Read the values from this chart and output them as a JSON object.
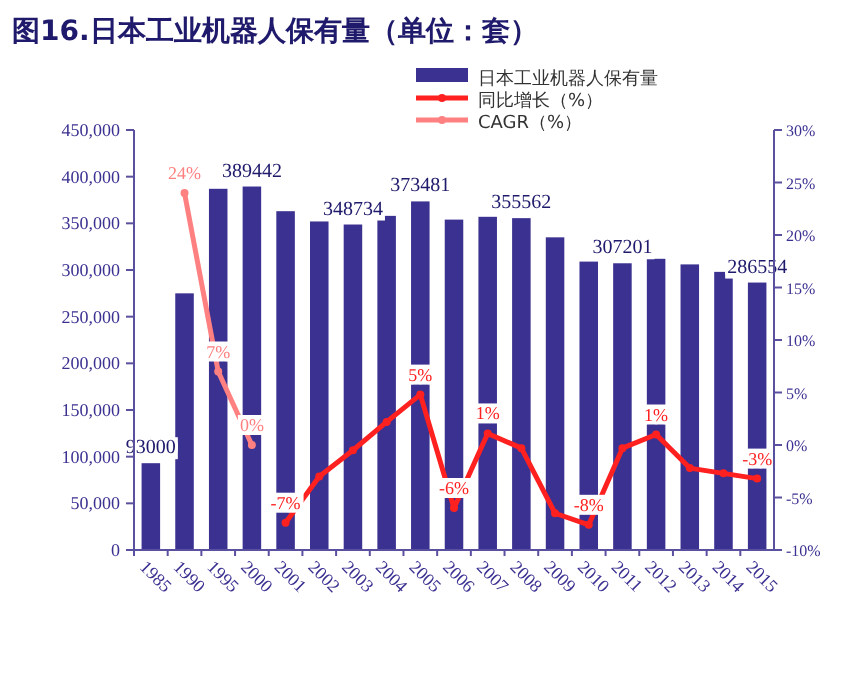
{
  "chart_data": {
    "type": "bar",
    "title": "图16.日本工业机器人保有量（单位：套）",
    "categories": [
      "1985",
      "1990",
      "1995",
      "2000",
      "2001",
      "2002",
      "2003",
      "2004",
      "2005",
      "2006",
      "2007",
      "2008",
      "2009",
      "2010",
      "2011",
      "2012",
      "2013",
      "2014",
      "2015"
    ],
    "series": [
      {
        "name": "日本工业机器人保有量",
        "color": "#3b3191",
        "values": [
          93000,
          275000,
          387000,
          389442,
          363000,
          352000,
          348734,
          358000,
          373481,
          354000,
          357000,
          355562,
          335000,
          309000,
          307201,
          312000,
          306000,
          298000,
          286554
        ],
        "value_labels": [
          "93000",
          null,
          null,
          "389442",
          null,
          null,
          "348734",
          null,
          "373481",
          null,
          null,
          "355562",
          null,
          null,
          "307201",
          null,
          null,
          null,
          "286554"
        ]
      },
      {
        "name": "同比增长（%）",
        "type": "line",
        "axis": "y2",
        "color": "#ff2020",
        "values": [
          null,
          null,
          null,
          null,
          -7.4,
          -3.0,
          -0.5,
          2.2,
          4.8,
          -6.0,
          1.1,
          -0.3,
          -6.5,
          -7.6,
          -0.3,
          1.0,
          -2.2,
          -2.7,
          -3.2
        ],
        "value_labels": [
          null,
          null,
          null,
          null,
          "-7%",
          null,
          null,
          null,
          "5%",
          "-6%",
          "1%",
          null,
          null,
          "-8%",
          null,
          "1%",
          null,
          null,
          "-3%"
        ]
      },
      {
        "name": "CAGR（%）",
        "type": "line",
        "axis": "y2",
        "color": "#ff8080",
        "values": [
          null,
          24,
          7,
          0,
          null,
          null,
          null,
          null,
          null,
          null,
          null,
          null,
          null,
          null,
          null,
          null,
          null,
          null,
          null
        ],
        "value_labels": [
          null,
          "24%",
          "7%",
          "0%",
          null,
          null,
          null,
          null,
          null,
          null,
          null,
          null,
          null,
          null,
          null,
          null,
          null,
          null,
          null
        ]
      }
    ],
    "ylim": [
      0,
      450000
    ],
    "yticks": [
      {
        "value": 0,
        "label": "0"
      },
      {
        "value": 50000,
        "label": "50,000"
      },
      {
        "value": 100000,
        "label": "100,000"
      },
      {
        "value": 150000,
        "label": "150,000"
      },
      {
        "value": 200000,
        "label": "200,000"
      },
      {
        "value": 250000,
        "label": "250,000"
      },
      {
        "value": 300000,
        "label": "300,000"
      },
      {
        "value": 350000,
        "label": "350,000"
      },
      {
        "value": 400000,
        "label": "400,000"
      },
      {
        "value": 450000,
        "label": "450,000"
      }
    ],
    "y2lim": [
      -10,
      30
    ],
    "y2ticks": [
      {
        "value": -10,
        "label": "-10%"
      },
      {
        "value": -5,
        "label": "-5%"
      },
      {
        "value": 0,
        "label": "0%"
      },
      {
        "value": 5,
        "label": "5%"
      },
      {
        "value": 10,
        "label": "10%"
      },
      {
        "value": 15,
        "label": "15%"
      },
      {
        "value": 20,
        "label": "20%"
      },
      {
        "value": 25,
        "label": "25%"
      },
      {
        "value": 30,
        "label": "30%"
      }
    ],
    "marker": "circle",
    "line_style": "solid",
    "grid": false,
    "legend": "top right"
  }
}
